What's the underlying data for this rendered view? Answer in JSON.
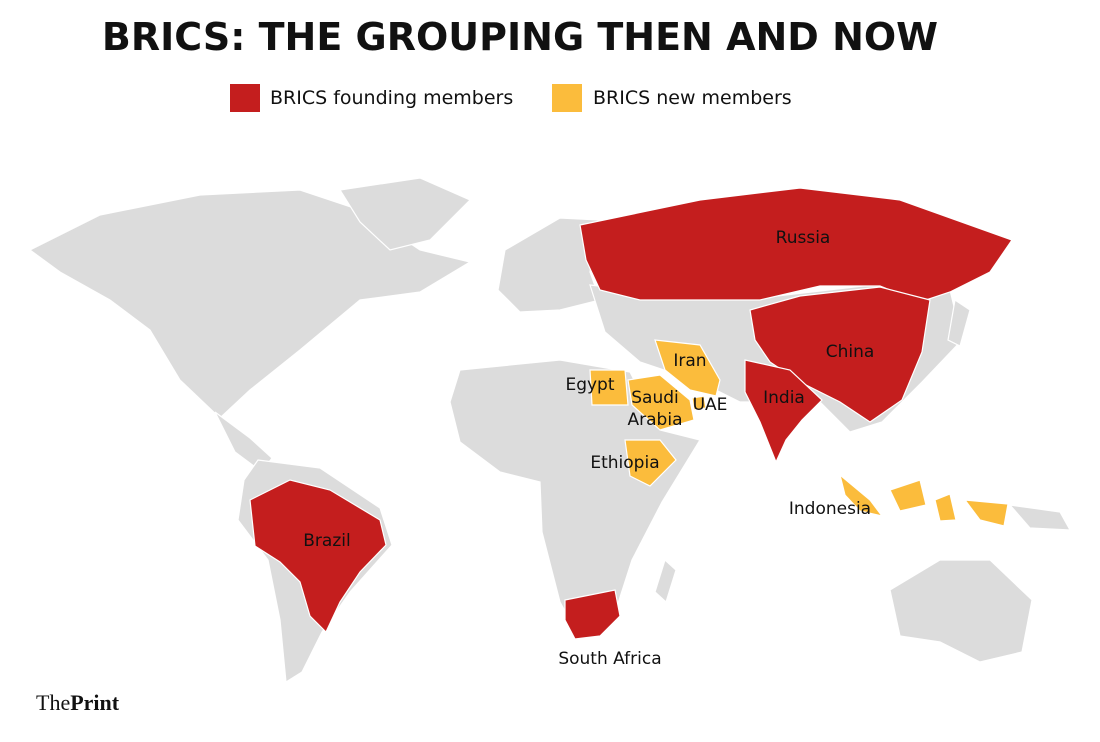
{
  "title": "BRICS: THE GROUPING THEN AND NOW",
  "legend": [
    {
      "label": "BRICS founding members",
      "color": "#c41e1e"
    },
    {
      "label": "BRICS new members",
      "color": "#fbbc3c"
    }
  ],
  "labels": [
    "Russia",
    "China",
    "India",
    "Iran",
    "Egypt",
    "Saudi",
    "Arabia",
    "UAE",
    "Ethiopia",
    "Indonesia",
    "Brazil",
    "South Africa"
  ],
  "brand": {
    "the": "The",
    "print": "Print"
  }
}
